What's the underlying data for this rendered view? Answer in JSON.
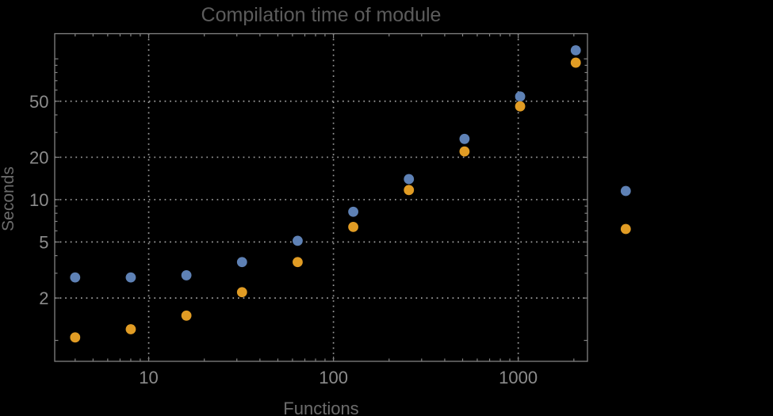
{
  "title": "Compilation time of module",
  "axes": {
    "xlabel": "Functions",
    "ylabel": "Seconds"
  },
  "chart_data": {
    "type": "scatter",
    "title": "Compilation time of module",
    "xlabel": "Functions",
    "ylabel": "Seconds",
    "x_scale": "log",
    "y_scale": "log",
    "xlim": [
      3.1,
      2370
    ],
    "ylim": [
      0.71,
      151
    ],
    "x": [
      4,
      8,
      16,
      32,
      64,
      128,
      256,
      512,
      1024,
      2048
    ],
    "series": [
      {
        "name": "series-1",
        "color": "#5E81B5",
        "values": [
          2.8,
          2.8,
          2.9,
          3.6,
          5.1,
          8.2,
          14,
          27,
          54,
          115
        ]
      },
      {
        "name": "series-2",
        "color": "#E19C24",
        "values": [
          1.05,
          1.2,
          1.5,
          2.2,
          3.6,
          6.4,
          11.7,
          22,
          46,
          94
        ]
      }
    ],
    "x_ticks": [
      {
        "v": 10,
        "label": "10"
      },
      {
        "v": 100,
        "label": "100"
      },
      {
        "v": 1000,
        "label": "1000"
      }
    ],
    "y_ticks": [
      {
        "v": 2,
        "label": "2"
      },
      {
        "v": 5,
        "label": "5"
      },
      {
        "v": 10,
        "label": "10"
      },
      {
        "v": 20,
        "label": "20"
      },
      {
        "v": 50,
        "label": "50"
      }
    ],
    "grid": {
      "x_values": [
        10,
        100,
        1000
      ],
      "y_values": [
        2,
        5,
        10,
        20,
        50
      ],
      "style": "dotted",
      "color": "#9e9e9e"
    },
    "legend": {
      "position": "right-outside",
      "labels_visible": false,
      "markers": [
        {
          "series": "series-1",
          "color": "#5E81B5"
        },
        {
          "series": "series-2",
          "color": "#E19C24"
        }
      ]
    },
    "point_radius": 6.4,
    "colors": {
      "background": "#000000",
      "frame": "#828282",
      "title": "#5c5c5c",
      "axis_label": "#6c6c6c",
      "tick_label": "#8c8c8c"
    }
  }
}
